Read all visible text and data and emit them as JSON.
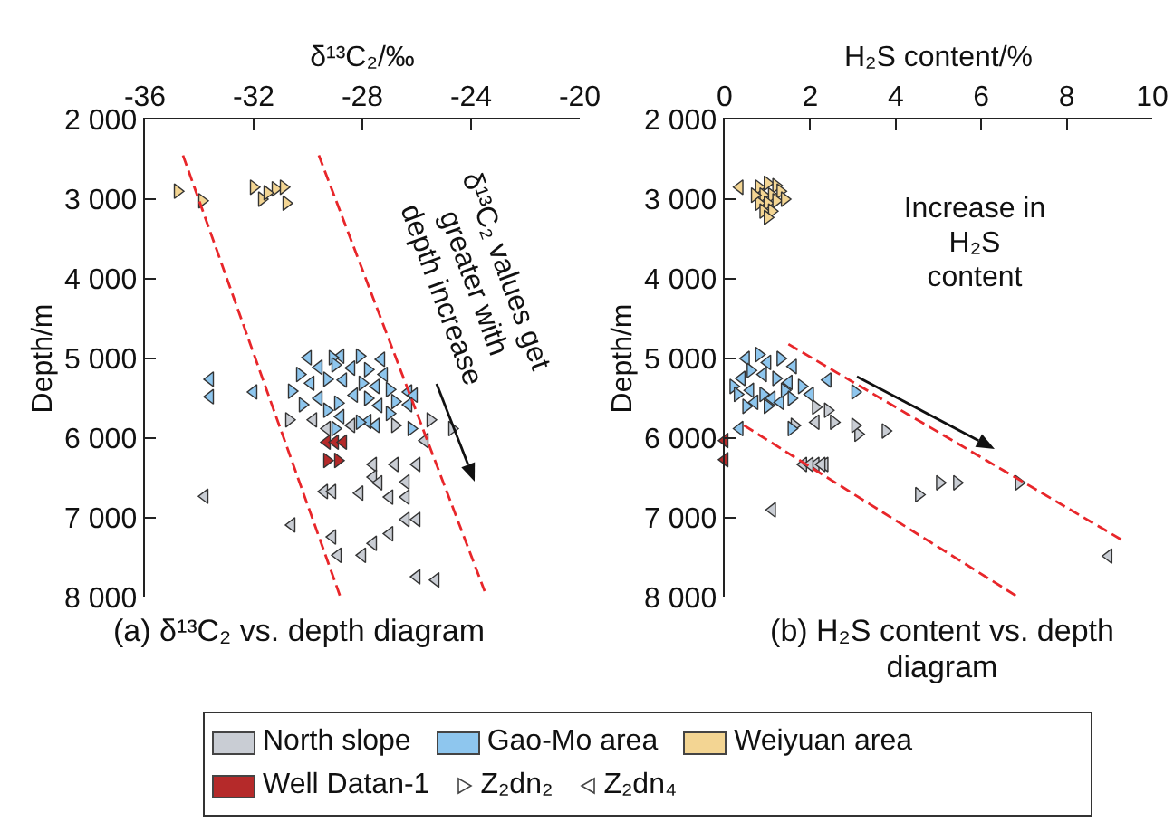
{
  "chart_data": [
    {
      "type": "scatter",
      "title": "(a) δ¹³C₂ vs. depth diagram",
      "xlabel": "δ¹³C₂/‰",
      "ylabel": "Depth/m",
      "xlim": [
        -36,
        -20
      ],
      "xticks": [
        -36,
        -32,
        -28,
        -24,
        -20
      ],
      "ylim": [
        8000,
        2000
      ],
      "yticks": [
        {
          "value": 2000,
          "label": "2 000"
        },
        {
          "value": 3000,
          "label": "3 000"
        },
        {
          "value": 4000,
          "label": "4 000"
        },
        {
          "value": 5000,
          "label": "5 000"
        },
        {
          "value": 6000,
          "label": "6 000"
        },
        {
          "value": 7000,
          "label": "7 000"
        },
        {
          "value": 8000,
          "label": "8 000"
        }
      ],
      "grid": false,
      "legend": "bottom",
      "annotations": [
        "δ¹³C₂ values get greater with depth increase",
        "Z₂dn₂",
        "Z₂dn₄"
      ],
      "series": [
        {
          "name": "North slope",
          "color": "#c9cdd4",
          "marker": "triangle-left",
          "x": [
            -29.8,
            -29.3,
            -28.4,
            -25.7,
            -27.6,
            -26.8,
            -26.0,
            -27.6,
            -27.4,
            -26.4,
            -29.4,
            -29.1,
            -28.1,
            -27.0,
            -26.4,
            -33.8,
            -30.6,
            -26.4,
            -26.0,
            -29.1,
            -28.9,
            -28.0,
            -27.6,
            -27.0,
            -26.0,
            -25.3
          ],
          "values": [
            5770,
            5880,
            5840,
            6030,
            6330,
            6330,
            6330,
            6490,
            6560,
            6550,
            6670,
            6670,
            6690,
            6740,
            6740,
            6730,
            7090,
            7020,
            7020,
            7240,
            7470,
            7470,
            7320,
            7200,
            7740,
            7780
          ]
        },
        {
          "color": "#c9cdd4",
          "marker": "triangle-right",
          "x": [
            -30.7,
            -26.8,
            -25.5,
            -24.7
          ],
          "values": [
            5770,
            5840,
            5770,
            5880
          ]
        },
        {
          "name": "Gao-Mo area",
          "color": "#8ec6ee",
          "marker": "triangle-left",
          "x": [
            -30.0,
            -28.8,
            -27.3,
            -29.6,
            -28.4,
            -27.2,
            -29.9,
            -28.7,
            -27.5,
            -26.3,
            -29.6,
            -28.3,
            -27.4,
            -26.1,
            -28.8,
            -27.8,
            -26.3,
            -27.5,
            -33.6,
            -33.6,
            -32.0
          ],
          "values": [
            4990,
            4970,
            5010,
            5110,
            5120,
            5200,
            5310,
            5270,
            5350,
            5420,
            5500,
            5460,
            5590,
            5460,
            5730,
            5790,
            5580,
            5840,
            5260,
            5480,
            5420
          ]
        },
        {
          "color": "#8ec6ee",
          "marker": "triangle-right",
          "x": [
            -29.1,
            -28.1,
            -30.3,
            -29.0,
            -27.8,
            -30.6,
            -29.3,
            -28.0,
            -27.0,
            -30.2,
            -28.9,
            -27.8,
            -26.8,
            -29.3,
            -28.1,
            -27.0,
            -26.2,
            -29.0
          ],
          "values": [
            4990,
            4970,
            5200,
            5080,
            5140,
            5410,
            5260,
            5310,
            5390,
            5580,
            5560,
            5500,
            5540,
            5650,
            5800,
            5690,
            5880,
            5880
          ]
        },
        {
          "name": "Weiyuan area",
          "color": "#f3d593",
          "marker": "triangle-right",
          "x": [
            -34.8,
            -33.9,
            -32.0,
            -31.7,
            -31.2,
            -30.9,
            -30.8,
            -31.5
          ],
          "values": [
            2900,
            3020,
            2850,
            3000,
            2870,
            2850,
            3050,
            2920
          ]
        },
        {
          "name": "Well Datan-1",
          "color": "#b52a2a",
          "marker": "triangle-left",
          "x": [
            -29.3,
            -29.0,
            -28.7
          ],
          "values": [
            6050,
            6050,
            6050
          ]
        },
        {
          "color": "#b52a2a",
          "marker": "triangle-right",
          "x": [
            -29.3,
            -28.9
          ],
          "values": [
            6280,
            6280
          ]
        },
        {
          "type": "line",
          "color": "#e8262a",
          "line_style": "dashed",
          "x": [
            -34.6,
            -28.8
          ],
          "values": [
            2450,
            8000
          ]
        },
        {
          "type": "line",
          "color": "#e8262a",
          "line_style": "dashed",
          "x": [
            -29.6,
            -23.5
          ],
          "values": [
            2450,
            7920
          ]
        }
      ]
    },
    {
      "type": "scatter",
      "title": "(b) H₂S content vs. depth diagram",
      "xlabel": "H₂S content/%",
      "ylabel": "Depth/m",
      "xlim": [
        0,
        10
      ],
      "xticks": [
        0,
        2,
        4,
        6,
        8,
        10
      ],
      "ylim": [
        8000,
        2000
      ],
      "yticks": [
        {
          "value": 2000,
          "label": "2 000"
        },
        {
          "value": 3000,
          "label": "3 000"
        },
        {
          "value": 4000,
          "label": "4 000"
        },
        {
          "value": 5000,
          "label": "5 000"
        },
        {
          "value": 6000,
          "label": "6 000"
        },
        {
          "value": 7000,
          "label": "7 000"
        },
        {
          "value": 8000,
          "label": "8 000"
        }
      ],
      "grid": false,
      "legend": "bottom",
      "annotations": [
        "Increase in H₂S content"
      ],
      "series": [
        {
          "name": "North slope",
          "color": "#c9cdd4",
          "marker": "triangle-left",
          "x": [
            2.13,
            1.84,
            2.13,
            2.34,
            1.11,
            1.99,
            2.27
          ],
          "values": [
            5800,
            6330,
            6330,
            6330,
            6900,
            6330,
            6330
          ]
        },
        {
          "color": "#c9cdd4",
          "marker": "triangle-right",
          "x": [
            2.41,
            2.55,
            3.12,
            1.63,
            2.13,
            3.05,
            3.76,
            4.54,
            5.03,
            5.43,
            6.88
          ],
          "values": [
            5650,
            5800,
            5950,
            5840,
            5610,
            5840,
            5910,
            6710,
            6560,
            6560,
            6560
          ]
        },
        {
          "color": "#c9cdd4",
          "marker": "triangle-left",
          "x": [
            8.98
          ],
          "values": [
            7480
          ]
        },
        {
          "name": "Gao-Mo area",
          "color": "#8ec6ee",
          "marker": "triangle-left",
          "x": [
            0.5,
            1.0,
            1.6,
            0.4,
            0.9,
            1.5,
            0.6,
            1.1,
            0.7,
            1.3,
            2.0,
            2.41,
            0.35
          ],
          "values": [
            5000,
            5050,
            5100,
            5250,
            5200,
            5300,
            5400,
            5500,
            5550,
            5550,
            5450,
            5270,
            5880
          ]
        },
        {
          "color": "#8ec6ee",
          "marker": "triangle-right",
          "x": [
            0.8,
            1.3,
            0.2,
            0.6,
            1.2,
            0.3,
            0.9,
            1.4,
            1.0,
            0.5,
            1.8,
            3.05,
            1.56,
            1.56
          ],
          "values": [
            4950,
            5000,
            5350,
            5150,
            5250,
            5450,
            5450,
            5400,
            5600,
            5600,
            5350,
            5420,
            5500,
            5880
          ]
        },
        {
          "name": "Weiyuan area",
          "color": "#f3d593",
          "marker": "triangle-left",
          "x": [
            0.35
          ],
          "values": [
            2850
          ]
        },
        {
          "color": "#f3d593",
          "marker": "triangle-right",
          "x": [
            0.8,
            1.0,
            1.2,
            0.9,
            1.1,
            1.3,
            0.8,
            1.0,
            1.2,
            0.9,
            1.1,
            1.4,
            0.7,
            1.0
          ],
          "values": [
            2850,
            2800,
            2830,
            2950,
            2950,
            2900,
            3050,
            3050,
            3020,
            3150,
            3150,
            3000,
            2950,
            3230
          ]
        },
        {
          "name": "Well Datan-1",
          "color": "#b52a2a",
          "marker": "triangle-left",
          "x": [
            0,
            0
          ],
          "values": [
            6030,
            6270
          ]
        },
        {
          "type": "line",
          "color": "#e8262a",
          "line_style": "dashed",
          "x": [
            1.49,
            9.36
          ],
          "values": [
            4820,
            7300
          ]
        },
        {
          "type": "line",
          "color": "#e8262a",
          "line_style": "dashed",
          "x": [
            0.45,
            6.88
          ],
          "values": [
            5840,
            8000
          ]
        }
      ]
    }
  ]
}
